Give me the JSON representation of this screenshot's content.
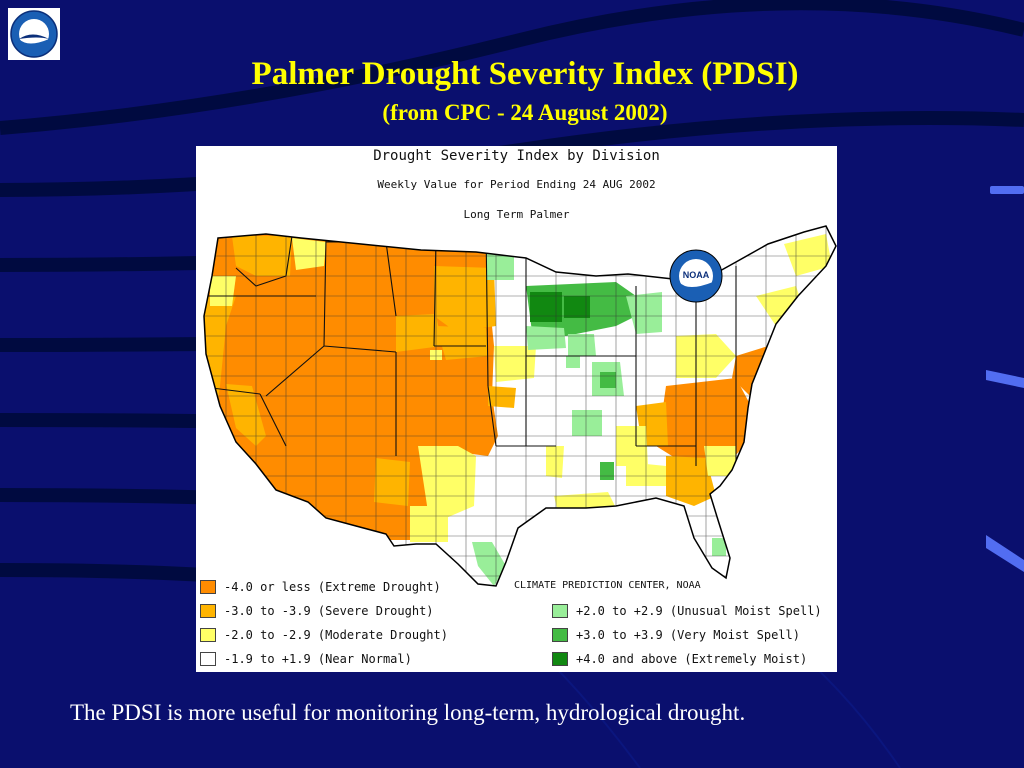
{
  "slide": {
    "title": "Palmer Drought Severity Index (PDSI)",
    "subtitle": "(from CPC - 24 August 2002)",
    "caption": "The PDSI is more useful for monitoring long-term, hydrological drought."
  },
  "map": {
    "title": "Drought Severity Index by Division",
    "subtitle": "Weekly Value for Period Ending 24 AUG 2002",
    "subtitle2": "Long Term Palmer",
    "credit": "CLIMATE PREDICTION CENTER, NOAA",
    "logo_text": "NOAA",
    "legend": [
      {
        "label": "-4.0 or less (Extreme Drought)",
        "color": "#ff8c00"
      },
      {
        "label": "-3.0 to -3.9 (Severe Drought)",
        "color": "#ffb400"
      },
      {
        "label": "-2.0 to -2.9 (Moderate Drought)",
        "color": "#ffff66"
      },
      {
        "label": "-1.9 to +1.9 (Near Normal)",
        "color": "#ffffff"
      },
      {
        "label": "+2.0 to +2.9 (Unusual Moist Spell)",
        "color": "#99ee99"
      },
      {
        "label": "+3.0 to +3.9 (Very Moist Spell)",
        "color": "#44bb44"
      },
      {
        "label": "+4.0 and above (Extremely Moist)",
        "color": "#118811"
      }
    ]
  },
  "colors": {
    "background": "#0a0f6e",
    "title": "#ffff00",
    "caption": "#ffffff",
    "extreme_drought": "#ff8c00",
    "severe_drought": "#ffb400",
    "moderate_drought": "#ffff66",
    "near_normal": "#ffffff",
    "unusual_moist": "#99ee99",
    "very_moist": "#44bb44",
    "extremely_moist": "#118811"
  },
  "icons": {
    "noaa_logo": "noaa-logo-icon"
  }
}
